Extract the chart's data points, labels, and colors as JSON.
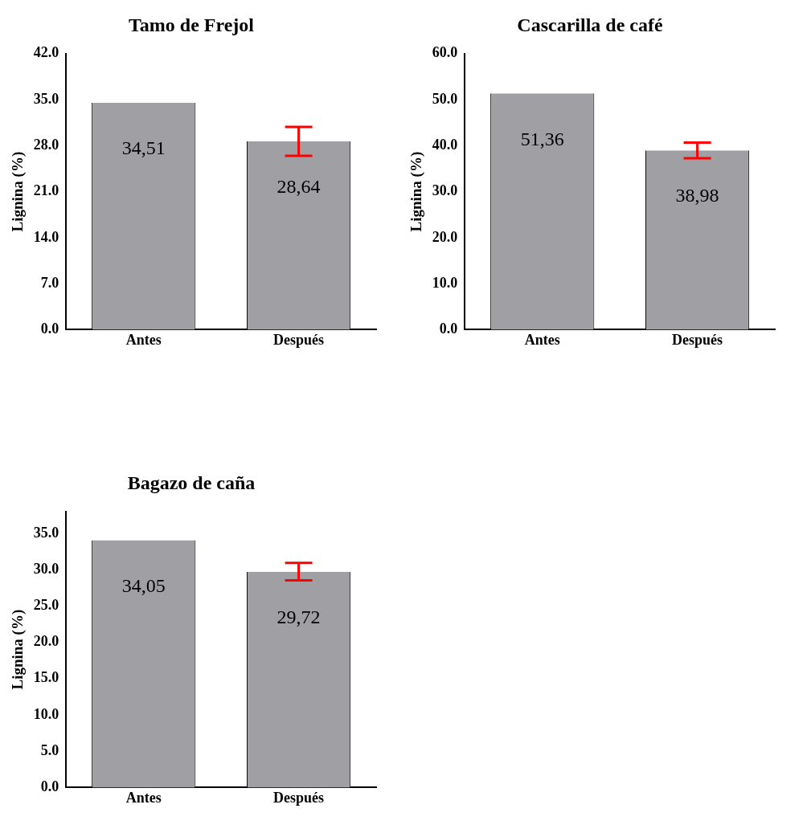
{
  "chart_data": [
    {
      "type": "bar",
      "title": "Tamo de Frejol",
      "ylabel": "Lignina (%)",
      "categories": [
        "Antes",
        "Después"
      ],
      "series": [
        {
          "color": "#a09fa4",
          "values": [
            34.51,
            28.64
          ],
          "errors": [
            null,
            2.2
          ],
          "value_labels": [
            "34,51",
            "28,64"
          ]
        }
      ],
      "ylim": [
        0,
        42
      ],
      "yticks": [
        {
          "value": 0,
          "label": "0.0"
        },
        {
          "value": 7,
          "label": "7.0"
        },
        {
          "value": 14,
          "label": "14.0"
        },
        {
          "value": 21,
          "label": "21.0"
        },
        {
          "value": 28,
          "label": "28.0"
        },
        {
          "value": 35,
          "label": "35.0"
        },
        {
          "value": 42,
          "label": "42.0"
        }
      ],
      "grid": false,
      "legend": false
    },
    {
      "type": "bar",
      "title": "Cascarilla de café",
      "ylabel": "Lignina (%)",
      "categories": [
        "Antes",
        "Después"
      ],
      "series": [
        {
          "color": "#a09fa4",
          "values": [
            51.36,
            38.98
          ],
          "errors": [
            null,
            1.7
          ],
          "value_labels": [
            "51,36",
            "38,98"
          ]
        }
      ],
      "ylim": [
        0,
        60
      ],
      "yticks": [
        {
          "value": 0,
          "label": "0.0"
        },
        {
          "value": 10,
          "label": "10.0"
        },
        {
          "value": 20,
          "label": "20.0"
        },
        {
          "value": 30,
          "label": "30.0"
        },
        {
          "value": 40,
          "label": "40.0"
        },
        {
          "value": 50,
          "label": "50.0"
        },
        {
          "value": 60,
          "label": "60.0"
        }
      ],
      "grid": false,
      "legend": false
    },
    {
      "type": "bar",
      "title": "Bagazo de caña",
      "ylabel": "Lignina (%)",
      "categories": [
        "Antes",
        "Después"
      ],
      "series": [
        {
          "color": "#a09fa4",
          "values": [
            34.05,
            29.72
          ],
          "errors": [
            null,
            1.2
          ],
          "value_labels": [
            "34,05",
            "29,72"
          ]
        }
      ],
      "ylim": [
        0,
        38
      ],
      "yticks": [
        {
          "value": 0,
          "label": "0.0"
        },
        {
          "value": 5,
          "label": "5.0"
        },
        {
          "value": 10,
          "label": "10.0"
        },
        {
          "value": 15,
          "label": "15.0"
        },
        {
          "value": 20,
          "label": "20.0"
        },
        {
          "value": 25,
          "label": "25.0"
        },
        {
          "value": 30,
          "label": "30.0"
        },
        {
          "value": 35,
          "label": "35.0"
        }
      ],
      "grid": false,
      "legend": false
    }
  ]
}
